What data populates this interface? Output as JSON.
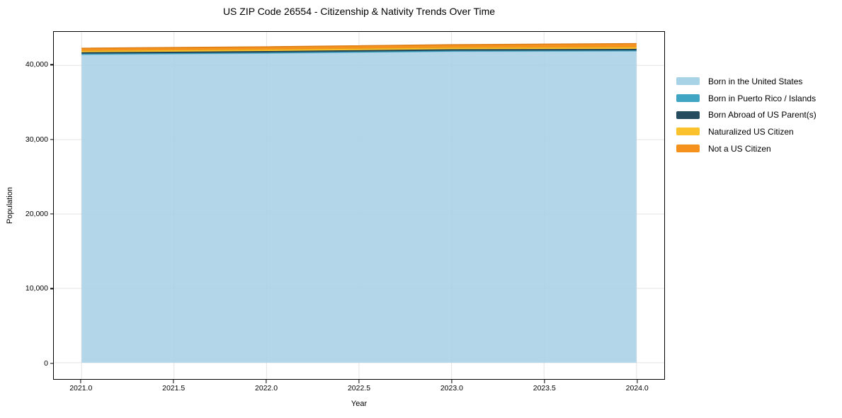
{
  "chart_data": {
    "type": "area",
    "stacked": true,
    "title": "US ZIP Code 26554 - Citizenship & Nativity Trends Over Time",
    "xlabel": "Year",
    "ylabel": "Population",
    "x": [
      2021,
      2022,
      2023,
      2024
    ],
    "series": [
      {
        "name": "Born in the United States",
        "color": "#a8d2e6",
        "edge_color": "#8fc0da",
        "values": [
          41430,
          41600,
          41850,
          41900
        ]
      },
      {
        "name": "Born in Puerto Rico / Islands",
        "color": "#3fa5c2",
        "edge_color": "#2f8fab",
        "values": [
          140,
          130,
          120,
          110
        ]
      },
      {
        "name": "Born Abroad of US Parent(s)",
        "color": "#254b5e",
        "edge_color": "#1c3a49",
        "values": [
          190,
          195,
          200,
          210
        ]
      },
      {
        "name": "Naturalized US Citizen",
        "color": "#fcc22d",
        "edge_color": "#e3a81a",
        "values": [
          220,
          225,
          230,
          240
        ]
      },
      {
        "name": "Not a US Citizen",
        "color": "#f5921e",
        "edge_color": "#d87a12",
        "values": [
          330,
          350,
          380,
          470
        ]
      }
    ],
    "xlim": [
      2020.85,
      2024.15
    ],
    "ylim": [
      -2200,
      44500
    ],
    "xticks": {
      "values": [
        2021.0,
        2021.5,
        2022.0,
        2022.5,
        2023.0,
        2023.5,
        2024.0
      ],
      "labels": [
        "2021.0",
        "2021.5",
        "2022.0",
        "2022.5",
        "2023.0",
        "2023.5",
        "2024.0"
      ]
    },
    "yticks": {
      "values": [
        0,
        10000,
        20000,
        30000,
        40000
      ],
      "labels": [
        "0",
        "10,000",
        "20,000",
        "30,000",
        "40,000"
      ]
    },
    "grid": true,
    "grid_color": "#e3e3e3",
    "plot_border_color": "#000000",
    "background": "#ffffff",
    "legend_position": "right"
  }
}
